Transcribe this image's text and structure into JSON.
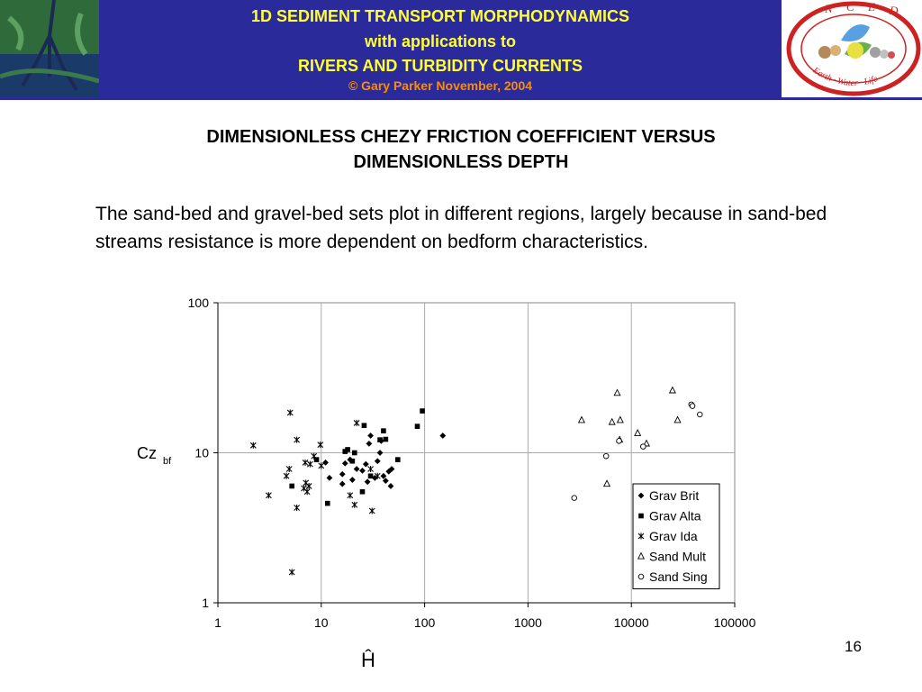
{
  "header": {
    "line1": "1D SEDIMENT TRANSPORT MORPHODYNAMICS",
    "line2": "with applications to",
    "line3": "RIVERS AND TURBIDITY CURRENTS",
    "copyright": "© Gary Parker November, 2004",
    "logo_letters": [
      "N",
      "C",
      "E",
      "D"
    ],
    "logo_motto": "Earth · Water · Life",
    "colors": {
      "banner": "#2a2a9a",
      "title_text": "#ffff33",
      "copyright_text": "#ff8c00",
      "logo_ring": "#cc2222"
    }
  },
  "slide": {
    "title_line1": "DIMENSIONLESS CHEZY FRICTION COEFFICIENT VERSUS",
    "title_line2": "DIMENSIONLESS DEPTH",
    "body": "The sand-bed and gravel-bed sets plot in different regions, largely because in sand-bed streams resistance is more dependent on bedform characteristics.",
    "page_number": "16"
  },
  "chart_data": {
    "type": "scatter",
    "x_scale": "log",
    "y_scale": "log",
    "xlim": [
      1,
      100000
    ],
    "ylim": [
      1,
      100
    ],
    "x_ticks": [
      "1",
      "10",
      "100",
      "1000",
      "10000",
      "100000"
    ],
    "y_ticks": [
      "1",
      "10",
      "100"
    ],
    "xlabel": "Ĥ",
    "ylabel": "Cz",
    "ylabel_sub": "bf",
    "grid": "vertical and horizontal at decades",
    "legend_position": "bottom-right",
    "series": [
      {
        "name": "Grav Brit",
        "marker": "diamond-filled",
        "points": [
          [
            11,
            8.6
          ],
          [
            12,
            6.8
          ],
          [
            16,
            7.2
          ],
          [
            16,
            6.2
          ],
          [
            17,
            8.5
          ],
          [
            19,
            9
          ],
          [
            20,
            6.6
          ],
          [
            22,
            7.8
          ],
          [
            25,
            7.6
          ],
          [
            27,
            8.4
          ],
          [
            28,
            6.4
          ],
          [
            29,
            11.5
          ],
          [
            30,
            13
          ],
          [
            33,
            6.8
          ],
          [
            35,
            8.8
          ],
          [
            37,
            10
          ],
          [
            38,
            12
          ],
          [
            40,
            7
          ],
          [
            42,
            6.5
          ],
          [
            45,
            7.5
          ],
          [
            47,
            6
          ],
          [
            48,
            7.8
          ],
          [
            150,
            13
          ]
        ]
      },
      {
        "name": "Grav Alta",
        "marker": "square-filled",
        "points": [
          [
            5.2,
            6
          ],
          [
            9,
            9
          ],
          [
            11.5,
            4.6
          ],
          [
            17,
            10.2
          ],
          [
            18,
            10.5
          ],
          [
            20,
            8.8
          ],
          [
            21,
            10
          ],
          [
            25,
            5.5
          ],
          [
            26,
            15.2
          ],
          [
            30,
            7
          ],
          [
            37,
            12.2
          ],
          [
            40,
            14
          ],
          [
            42,
            12.3
          ],
          [
            55,
            9
          ],
          [
            85,
            15
          ],
          [
            95,
            19
          ]
        ]
      },
      {
        "name": "Grav Ida",
        "marker": "asterisk",
        "points": [
          [
            2.2,
            11.2
          ],
          [
            3.1,
            5.2
          ],
          [
            4.6,
            7
          ],
          [
            4.9,
            7.8
          ],
          [
            5,
            18.5
          ],
          [
            5.2,
            1.6
          ],
          [
            5.8,
            12.2
          ],
          [
            5.8,
            4.3
          ],
          [
            6.8,
            5.8
          ],
          [
            7,
            8.6
          ],
          [
            7.1,
            6.3
          ],
          [
            7.3,
            5.5
          ],
          [
            7.6,
            6
          ],
          [
            7.8,
            8.4
          ],
          [
            8.5,
            9.5
          ],
          [
            9.8,
            11.3
          ],
          [
            10,
            8.2
          ],
          [
            19,
            5.2
          ],
          [
            21,
            4.5
          ],
          [
            22,
            15.8
          ],
          [
            30,
            7.8
          ],
          [
            31,
            4.1
          ],
          [
            35,
            7
          ]
        ]
      },
      {
        "name": "Sand Mult",
        "marker": "triangle-open",
        "points": [
          [
            3300,
            16.5
          ],
          [
            5800,
            6.2
          ],
          [
            6500,
            16
          ],
          [
            7300,
            25
          ],
          [
            7800,
            16.5
          ],
          [
            7700,
            12.2
          ],
          [
            11500,
            13.5
          ],
          [
            14000,
            11.5
          ],
          [
            25000,
            26
          ],
          [
            28000,
            16.5
          ]
        ]
      },
      {
        "name": "Sand Sing",
        "marker": "circle-open",
        "points": [
          [
            2800,
            5
          ],
          [
            5700,
            9.5
          ],
          [
            7600,
            12
          ],
          [
            13000,
            11
          ],
          [
            38000,
            21
          ],
          [
            39000,
            20.5
          ],
          [
            46000,
            18
          ]
        ]
      }
    ]
  }
}
